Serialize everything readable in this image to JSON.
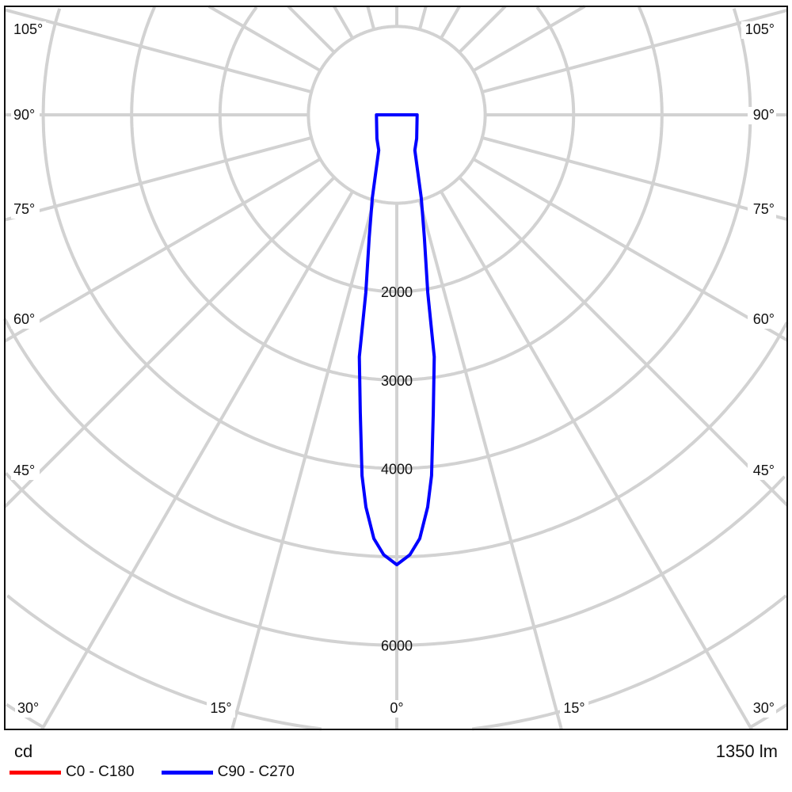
{
  "chart_data": {
    "type": "polar",
    "unit_label": "cd",
    "flux_label": "1350 lm",
    "grid": true,
    "radial_step_cd": 1000,
    "intensity_tick_labels": [
      "2000",
      "3000",
      "4000",
      "6000"
    ],
    "angle_labels": {
      "left": [
        "105°",
        "90°",
        "75°",
        "60°",
        "45°",
        "30°"
      ],
      "bottom": [
        "15°",
        "0°",
        "15°"
      ],
      "right": [
        "105°",
        "90°",
        "75°",
        "60°",
        "45°",
        "30°"
      ]
    },
    "legend_position": "bottom-left",
    "series": [
      {
        "name": "C0 - C180",
        "color": "#ff0000",
        "gamma": [],
        "cd": []
      },
      {
        "name": "C90 - C270",
        "color": "#0000ff",
        "gamma": [
          0,
          1.7,
          3.1,
          4.5,
          5.5,
          7,
          8.8,
          9.9,
          12.7,
          16.4,
          27,
          40,
          90
        ],
        "cd": [
          5090,
          4980,
          4800,
          4450,
          4100,
          3390,
          2770,
          2040,
          1420,
          980,
          450,
          350,
          230
        ]
      }
    ]
  }
}
